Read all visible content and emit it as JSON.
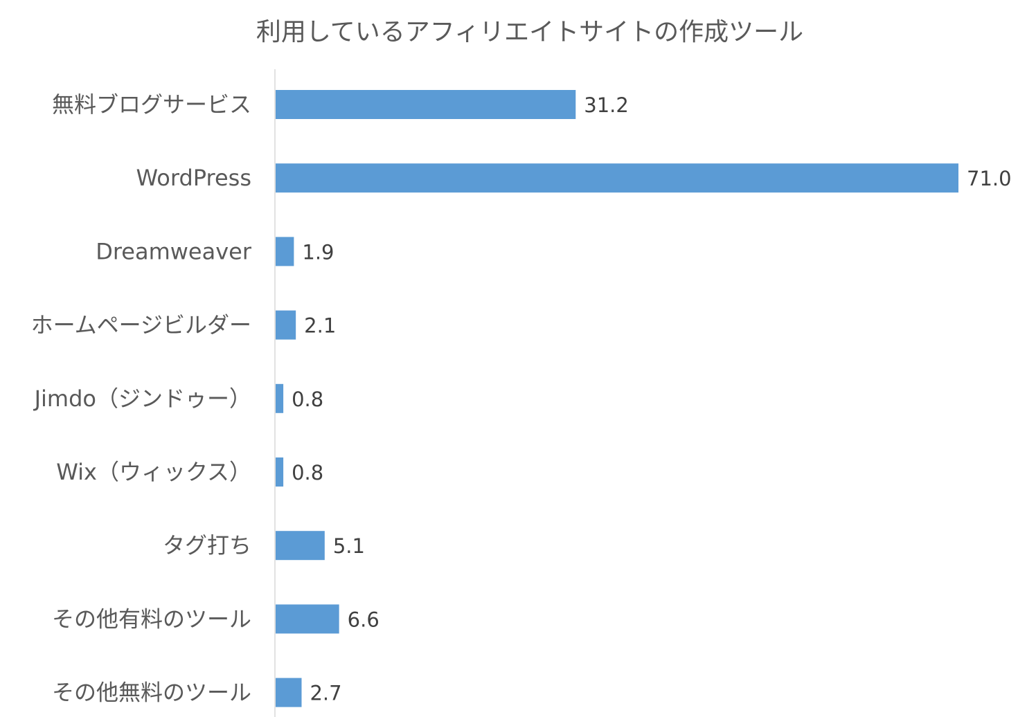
{
  "chart_data": {
    "type": "bar",
    "orientation": "horizontal",
    "title": "利用しているアフィリエイトサイトの作成ツール",
    "categories": [
      "無料ブログサービス",
      "WordPress",
      "Dreamweaver",
      "ホームページビルダー",
      "Jimdo（ジンドゥー）",
      "Wix（ウィックス）",
      "タグ打ち",
      "その他有料のツール",
      "その他無料のツール"
    ],
    "values": [
      31.2,
      71.0,
      1.9,
      2.1,
      0.8,
      0.8,
      5.1,
      6.6,
      2.7
    ],
    "value_labels": [
      "31.2",
      "71.0",
      "1.9",
      "2.1",
      "0.8",
      "0.8",
      "5.1",
      "6.6",
      "2.7"
    ],
    "xlim": [
      0,
      71.0
    ],
    "grid": false,
    "legend": "none",
    "bar_color": "#5B9BD5",
    "axis_color": "#D9D9D9"
  }
}
